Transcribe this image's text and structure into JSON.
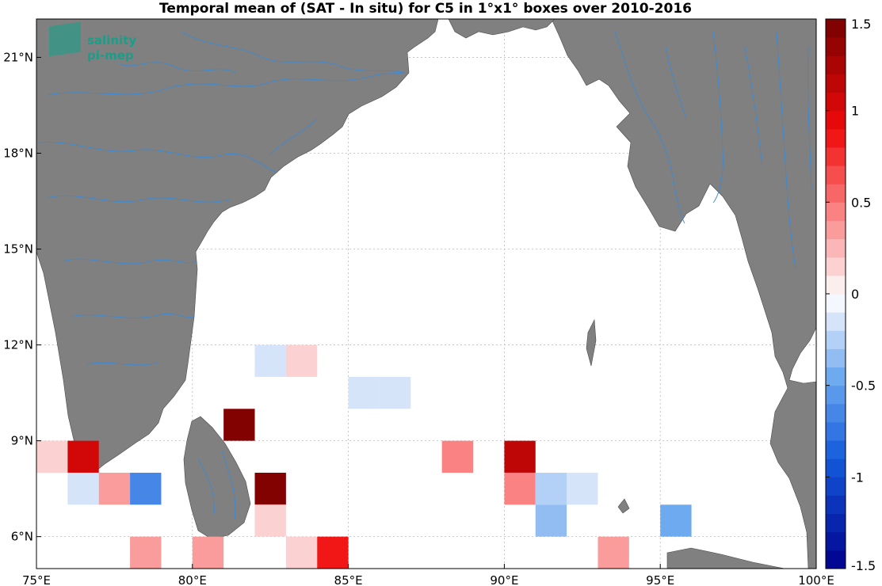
{
  "title": "Temporal mean of (SAT - In situ) for C5 in 1°x1° boxes over 2010-2016",
  "logo": {
    "line1": "salinity",
    "line2": "pi-mep"
  },
  "map": {
    "lon_range": [
      75,
      100
    ],
    "lat_range": [
      5,
      22.2
    ],
    "x_ticks": [
      {
        "value": 75,
        "label": "75°E"
      },
      {
        "value": 80,
        "label": "80°E"
      },
      {
        "value": 85,
        "label": "85°E"
      },
      {
        "value": 90,
        "label": "90°E"
      },
      {
        "value": 95,
        "label": "95°E"
      },
      {
        "value": 100,
        "label": "100°E"
      }
    ],
    "y_ticks": [
      {
        "value": 6,
        "label": "6°N"
      },
      {
        "value": 9,
        "label": "9°N"
      },
      {
        "value": 12,
        "label": "12°N"
      },
      {
        "value": 15,
        "label": "15°N"
      },
      {
        "value": 18,
        "label": "18°N"
      },
      {
        "value": 21,
        "label": "21°N"
      }
    ],
    "grid": true,
    "colors": {
      "land": "#808080",
      "river": "#3a8ad6",
      "ocean": "#ffffff"
    }
  },
  "colorbar": {
    "range": [
      -1.5,
      1.5
    ],
    "levels": 30,
    "ticks": [
      {
        "value": 1.5,
        "label": "1.5"
      },
      {
        "value": 1,
        "label": "1"
      },
      {
        "value": 0.5,
        "label": "0.5"
      },
      {
        "value": 0,
        "label": "0"
      },
      {
        "value": -0.5,
        "label": "-0.5"
      },
      {
        "value": -1,
        "label": "-1"
      },
      {
        "value": -1.5,
        "label": "-1.5"
      }
    ]
  },
  "chart_data": {
    "type": "heatmap",
    "units": "1°x1° boxes, value = mean SAT - In situ",
    "cells": [
      {
        "lon": 82,
        "lat": 11,
        "value": -0.1
      },
      {
        "lon": 83,
        "lat": 11,
        "value": 0.1
      },
      {
        "lon": 85,
        "lat": 10,
        "value": -0.1
      },
      {
        "lon": 86,
        "lat": 10,
        "value": -0.1
      },
      {
        "lon": 81,
        "lat": 9,
        "value": 1.5
      },
      {
        "lon": 75,
        "lat": 8,
        "value": 0.15
      },
      {
        "lon": 76,
        "lat": 8,
        "value": 1.0
      },
      {
        "lon": 88,
        "lat": 8,
        "value": 0.45
      },
      {
        "lon": 90,
        "lat": 8,
        "value": 1.1
      },
      {
        "lon": 76,
        "lat": 7,
        "value": -0.1
      },
      {
        "lon": 77,
        "lat": 7,
        "value": 0.3
      },
      {
        "lon": 78,
        "lat": 7,
        "value": -0.65
      },
      {
        "lon": 82,
        "lat": 7,
        "value": 1.5
      },
      {
        "lon": 90,
        "lat": 7,
        "value": 0.45
      },
      {
        "lon": 91,
        "lat": 7,
        "value": -0.25
      },
      {
        "lon": 92,
        "lat": 7,
        "value": -0.1
      },
      {
        "lon": 82,
        "lat": 6,
        "value": 0.15
      },
      {
        "lon": 91,
        "lat": 6,
        "value": -0.3
      },
      {
        "lon": 95,
        "lat": 6,
        "value": -0.45
      },
      {
        "lon": 78,
        "lat": 5,
        "value": 0.3
      },
      {
        "lon": 80,
        "lat": 5,
        "value": 0.3
      },
      {
        "lon": 83,
        "lat": 5,
        "value": 0.15
      },
      {
        "lon": 84,
        "lat": 5,
        "value": 0.8
      },
      {
        "lon": 93,
        "lat": 5,
        "value": 0.3
      }
    ]
  }
}
